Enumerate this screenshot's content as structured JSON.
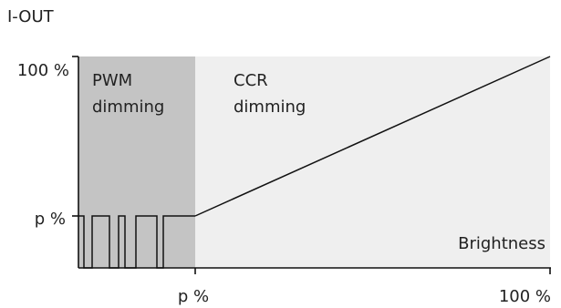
{
  "y_axis_title": "I-OUT",
  "y_ticks": {
    "top": "100 %",
    "mid": "p %"
  },
  "x_ticks": {
    "mid": "p %",
    "end": "100 %"
  },
  "regions": {
    "pwm": {
      "line1": "PWM",
      "line2": "dimming"
    },
    "ccr": {
      "line1": "CCR",
      "line2": "dimming"
    }
  },
  "x_axis_label": "Brightness",
  "colors": {
    "pwm_fill": "#c4c4c4",
    "ccr_fill": "#efefef",
    "line": "#111111"
  }
}
